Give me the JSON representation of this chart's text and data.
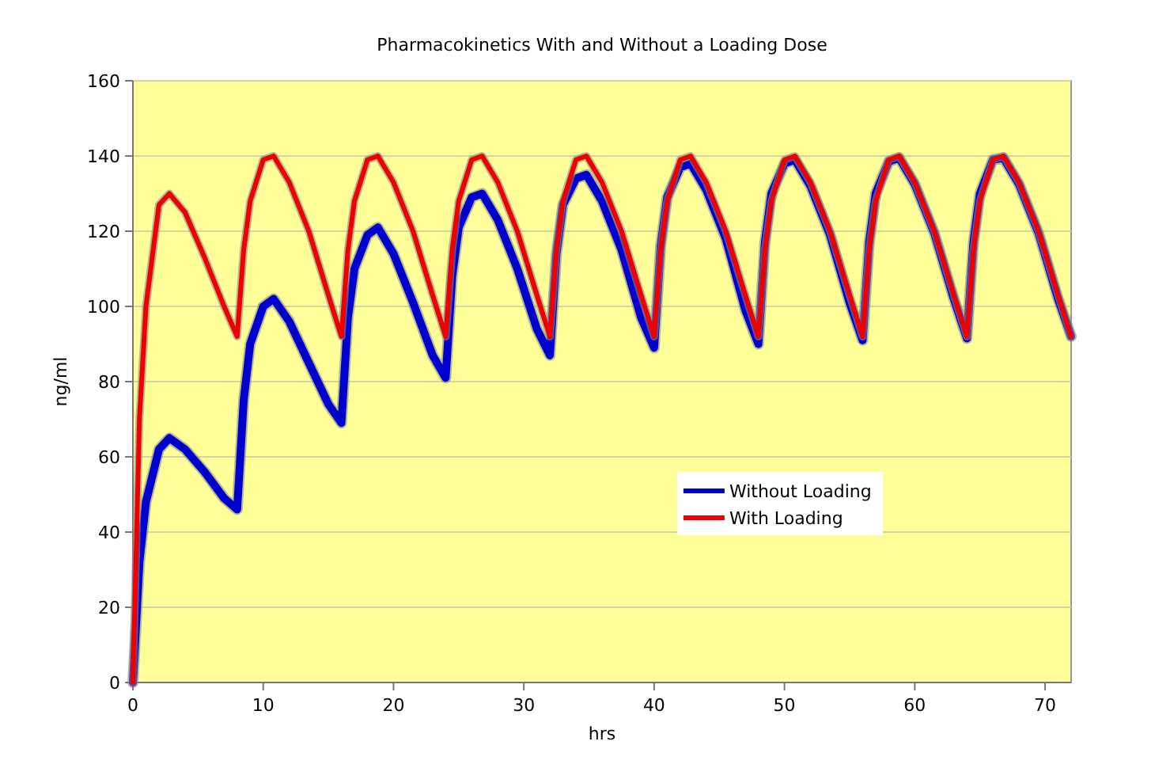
{
  "chart_data": {
    "type": "line",
    "title": "Pharmacokinetics With and Without a Loading Dose",
    "xlabel": "hrs",
    "ylabel": "ng/ml",
    "x": [
      0,
      0.5,
      1,
      2,
      2.8,
      4,
      5.5,
      7,
      8,
      8.5,
      9,
      10,
      10.8,
      12,
      13.5,
      15,
      16,
      16.5,
      17,
      18,
      18.8,
      20,
      21.5,
      23,
      24,
      24.5,
      25,
      26,
      26.8,
      28,
      29.5,
      31,
      32,
      32.5,
      33,
      34,
      34.8,
      36,
      37.5,
      39,
      40,
      40.5,
      41,
      42,
      42.8,
      44,
      45.5,
      47,
      48,
      48.5,
      49,
      50,
      50.8,
      52,
      53.5,
      55,
      56,
      56.5,
      57,
      58,
      58.8,
      60,
      61.5,
      63,
      64,
      64.5,
      65,
      66,
      66.8,
      68,
      69.5,
      71,
      72
    ],
    "series": [
      {
        "name": "Without Loading",
        "color": "#0000cc",
        "values": [
          0,
          32,
          48,
          62,
          65,
          62,
          56,
          49,
          46,
          75,
          90,
          100,
          102,
          96,
          85,
          74,
          69,
          97,
          110,
          119,
          121,
          114,
          101,
          87,
          81,
          108,
          121,
          129,
          130,
          123,
          110,
          94,
          87,
          114,
          127,
          134,
          135,
          128,
          115,
          97,
          89,
          116,
          129,
          137,
          138,
          131,
          118,
          99,
          90,
          117,
          130,
          138,
          139,
          132,
          119,
          101,
          91,
          117,
          130,
          138.5,
          139.5,
          132.5,
          119.5,
          102,
          91.5,
          117,
          130,
          139,
          139.5,
          132.5,
          119.5,
          102,
          92
        ]
      },
      {
        "name": "With Loading",
        "color": "#ee0000",
        "values": [
          0,
          70,
          100,
          127,
          130,
          125,
          113,
          100,
          92,
          115,
          128,
          139,
          140,
          133,
          120,
          103,
          92,
          115,
          128,
          139,
          140,
          133,
          120,
          103,
          92,
          115,
          128,
          139,
          140,
          133,
          120,
          103,
          92,
          115,
          128,
          139,
          140,
          133,
          120,
          103,
          92,
          115,
          128,
          139,
          140,
          133,
          120,
          103,
          92,
          115,
          128,
          139,
          140,
          133,
          120,
          103,
          92,
          115,
          128,
          139,
          140,
          133,
          120,
          103,
          92,
          115,
          128,
          139,
          140,
          133,
          120,
          103,
          92
        ]
      }
    ],
    "xlim": [
      0,
      72
    ],
    "xticks": [
      0,
      10,
      20,
      30,
      40,
      50,
      60,
      70
    ],
    "ylim": [
      0,
      160
    ],
    "yticks": [
      0,
      20,
      40,
      60,
      80,
      100,
      120,
      140,
      160
    ],
    "grid": "y",
    "legend": "right",
    "marker": "none",
    "line_style": "solid"
  }
}
